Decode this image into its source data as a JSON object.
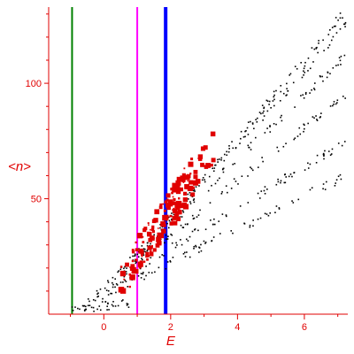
{
  "chart_data": {
    "type": "scatter",
    "xlabel": "E",
    "ylabel": "<n>",
    "xlim": [
      -1.65,
      7.3
    ],
    "ylim": [
      0,
      133
    ],
    "x_ticks": [
      0,
      2,
      4,
      6
    ],
    "y_ticks": [
      50,
      100
    ],
    "grid": false,
    "vertical_lines": [
      {
        "x": -0.95,
        "color": "#008000"
      },
      {
        "x": 1.0,
        "color": "#ff00ff"
      },
      {
        "x": 1.85,
        "color": "#0000ff"
      }
    ],
    "series": [
      {
        "color": "#000000",
        "marker": "small-dot",
        "bands": [
          {
            "x0": -0.95,
            "x1": 0.8,
            "y0": 2,
            "y1": 5
          },
          {
            "x0": -0.6,
            "x1": 7.25,
            "y0": 4,
            "y1": 60
          },
          {
            "x0": -0.3,
            "x1": 7.25,
            "y0": 8,
            "y1": 75
          },
          {
            "x0": 0.0,
            "x1": 7.25,
            "y0": 12,
            "y1": 95
          },
          {
            "x0": 0.3,
            "x1": 7.25,
            "y0": 16,
            "y1": 112
          },
          {
            "x0": 0.6,
            "x1": 7.25,
            "y0": 20,
            "y1": 125
          },
          {
            "x0": 1.0,
            "x1": 7.25,
            "y0": 24,
            "y1": 132
          }
        ]
      },
      {
        "color": "#e00000",
        "marker": "square",
        "bands": [
          {
            "x0": 0.5,
            "x1": 3.3,
            "y0": 14,
            "y1": 72
          },
          {
            "x0": 0.8,
            "x1": 3.0,
            "y0": 20,
            "y1": 68
          },
          {
            "x0": 1.0,
            "x1": 2.7,
            "y0": 26,
            "y1": 58
          }
        ]
      }
    ]
  }
}
